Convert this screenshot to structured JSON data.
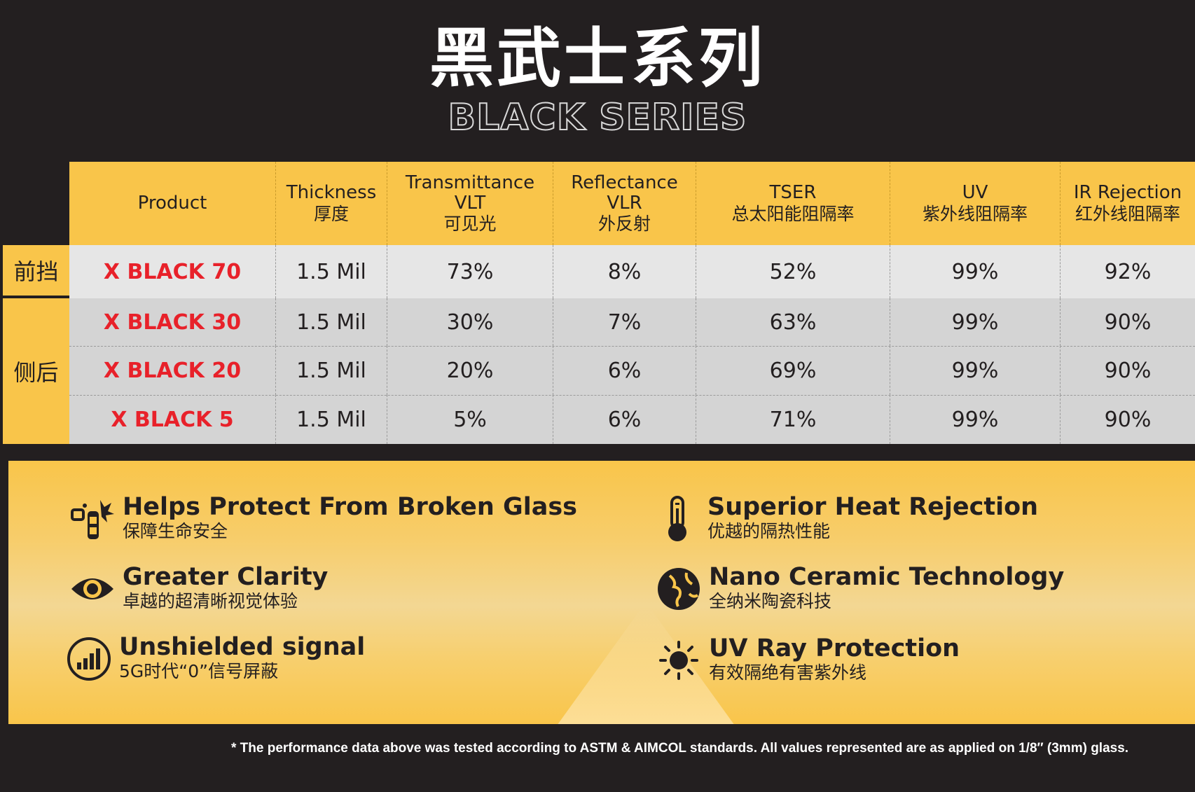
{
  "title": {
    "cn": "黑武士系列",
    "en": "BLACK SERIES"
  },
  "table": {
    "headers": [
      {
        "en": "Product",
        "en2": "",
        "cn": ""
      },
      {
        "en": "Thickness",
        "en2": "",
        "cn": "厚度"
      },
      {
        "en": "Transmittance",
        "en2": "VLT",
        "cn": "可见光"
      },
      {
        "en": "Reflectance",
        "en2": "VLR",
        "cn": "外反射"
      },
      {
        "en": "TSER",
        "en2": "",
        "cn": "总太阳能阻隔率"
      },
      {
        "en": "UV",
        "en2": "",
        "cn": "紫外线阻隔率"
      },
      {
        "en": "IR Rejection",
        "en2": "",
        "cn": "红外线阻隔率"
      }
    ],
    "groups": {
      "front": "前挡",
      "side_rear": "侧后"
    },
    "rows": [
      {
        "product": "X BLACK 70",
        "thickness": "1.5 Mil",
        "vlt": "73%",
        "vlr": "8%",
        "tser": "52%",
        "uv": "99%",
        "ir": "92%"
      },
      {
        "product": "X BLACK 30",
        "thickness": "1.5 Mil",
        "vlt": "30%",
        "vlr": "7%",
        "tser": "63%",
        "uv": "99%",
        "ir": "90%"
      },
      {
        "product": "X BLACK 20",
        "thickness": "1.5 Mil",
        "vlt": "20%",
        "vlr": "6%",
        "tser": "69%",
        "uv": "99%",
        "ir": "90%"
      },
      {
        "product": "X BLACK 5",
        "thickness": "1.5 Mil",
        "vlt": "5%",
        "vlr": "6%",
        "tser": "71%",
        "uv": "99%",
        "ir": "90%"
      }
    ]
  },
  "features": [
    {
      "icon": "broken-glass-icon",
      "en": "Helps Protect From Broken Glass",
      "cn": "保障生命安全"
    },
    {
      "icon": "eye-icon",
      "en": "Greater Clarity",
      "cn": "卓越的超清晰视觉体验"
    },
    {
      "icon": "signal-icon",
      "en": "Unshielded signal",
      "cn": "5G时代“0”信号屏蔽"
    },
    {
      "icon": "thermometer-icon",
      "en": "Superior Heat Rejection",
      "cn": "优越的隔热性能"
    },
    {
      "icon": "globe-icon",
      "en": "Nano Ceramic Technology",
      "cn": "全纳米陶瓷科技"
    },
    {
      "icon": "sun-icon",
      "en": "UV Ray Protection",
      "cn": "有效隔绝有害紫外线"
    }
  ],
  "footnote": "* The performance data above was tested according to ASTM & AIMCOL standards. All values represented are as applied on 1/8″ (3mm) glass.",
  "colors": {
    "background": "#231f20",
    "accent": "#f9c54a",
    "product": "#e8212a"
  }
}
